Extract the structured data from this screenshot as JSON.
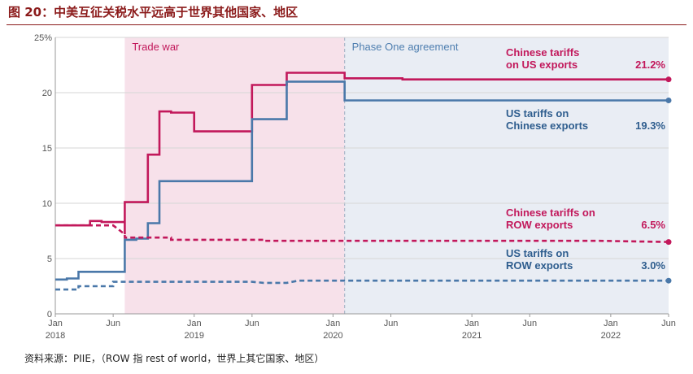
{
  "figure": {
    "title": "图 20：中美互征关税水平远高于世界其他国家、地区",
    "source": "资料来源：PIIE，（ROW 指 rest of world，世界上其它国家、地区）"
  },
  "chart_data": {
    "type": "line",
    "x_axis": {
      "range": [
        "2018-01",
        "2022-06"
      ],
      "month_ticks": [
        {
          "date": "2018-01",
          "label": "Jan"
        },
        {
          "date": "2018-06",
          "label": "Jun"
        },
        {
          "date": "2019-01",
          "label": "Jan"
        },
        {
          "date": "2019-06",
          "label": "Jun"
        },
        {
          "date": "2020-01",
          "label": "Jan"
        },
        {
          "date": "2020-06",
          "label": "Jun"
        },
        {
          "date": "2021-01",
          "label": "Jan"
        },
        {
          "date": "2021-06",
          "label": "Jun"
        },
        {
          "date": "2022-01",
          "label": "Jan"
        },
        {
          "date": "2022-06",
          "label": "Jun"
        }
      ],
      "year_ticks": [
        {
          "date": "2018-01",
          "label": "2018"
        },
        {
          "date": "2019-01",
          "label": "2019"
        },
        {
          "date": "2020-01",
          "label": "2020"
        },
        {
          "date": "2021-01",
          "label": "2021"
        },
        {
          "date": "2022-01",
          "label": "2022"
        }
      ]
    },
    "y_axis": {
      "range": [
        0,
        25
      ],
      "ticks": [
        {
          "value": 0,
          "label": "0"
        },
        {
          "value": 5,
          "label": "5"
        },
        {
          "value": 10,
          "label": "10"
        },
        {
          "value": 15,
          "label": "15"
        },
        {
          "value": 20,
          "label": "20"
        },
        {
          "value": 25,
          "label": "25%"
        }
      ]
    },
    "grid": "horizontal",
    "regions": [
      {
        "label": "Trade war",
        "start": "2018-07",
        "end": "2020-02",
        "color": "#f7e1ea",
        "text_color": "#c2185b"
      },
      {
        "label": "Phase One agreement",
        "start": "2020-02",
        "end": "2022-06",
        "color": "#e9edf4",
        "text_color": "#4f7fb0"
      }
    ],
    "series": [
      {
        "name": "Chinese tariffs on US exports",
        "color": "#c2185b",
        "style": "solid",
        "end_label": "21.2%",
        "points": [
          [
            "2018-01",
            8.0
          ],
          [
            "2018-04",
            8.0
          ],
          [
            "2018-04",
            8.4
          ],
          [
            "2018-05",
            8.4
          ],
          [
            "2018-05",
            8.3
          ],
          [
            "2018-07",
            8.3
          ],
          [
            "2018-07",
            7.2
          ],
          [
            "2018-07",
            10.1
          ],
          [
            "2018-09",
            10.1
          ],
          [
            "2018-09",
            14.4
          ],
          [
            "2018-10",
            14.4
          ],
          [
            "2018-10",
            18.3
          ],
          [
            "2018-11",
            18.3
          ],
          [
            "2018-11",
            18.2
          ],
          [
            "2019-01",
            18.2
          ],
          [
            "2019-01",
            16.5
          ],
          [
            "2019-06",
            16.5
          ],
          [
            "2019-06",
            20.7
          ],
          [
            "2019-09",
            20.7
          ],
          [
            "2019-09",
            21.8
          ],
          [
            "2020-02",
            21.8
          ],
          [
            "2020-02",
            21.3
          ],
          [
            "2020-07",
            21.3
          ],
          [
            "2020-07",
            21.2
          ],
          [
            "2022-06",
            21.2
          ]
        ]
      },
      {
        "name": "US tariffs on Chinese exports",
        "color": "#4a78a9",
        "style": "solid",
        "end_label": "19.3%",
        "points": [
          [
            "2018-01",
            3.1
          ],
          [
            "2018-02",
            3.1
          ],
          [
            "2018-02",
            3.2
          ],
          [
            "2018-03",
            3.2
          ],
          [
            "2018-03",
            3.8
          ],
          [
            "2018-07",
            3.8
          ],
          [
            "2018-07",
            6.7
          ],
          [
            "2018-08",
            6.7
          ],
          [
            "2018-08",
            6.8
          ],
          [
            "2018-09",
            6.8
          ],
          [
            "2018-09",
            8.2
          ],
          [
            "2018-10",
            8.2
          ],
          [
            "2018-10",
            12.0
          ],
          [
            "2019-06",
            12.0
          ],
          [
            "2019-06",
            17.6
          ],
          [
            "2019-09",
            17.6
          ],
          [
            "2019-09",
            21.0
          ],
          [
            "2020-02",
            21.0
          ],
          [
            "2020-02",
            19.3
          ],
          [
            "2022-06",
            19.3
          ]
        ]
      },
      {
        "name": "Chinese tariffs on ROW exports",
        "color": "#c2185b",
        "style": "dashed",
        "end_label": "6.5%",
        "points": [
          [
            "2018-01",
            8.0
          ],
          [
            "2018-06",
            8.0
          ],
          [
            "2018-07",
            7.2
          ],
          [
            "2018-07",
            6.9
          ],
          [
            "2018-11",
            6.9
          ],
          [
            "2018-11",
            6.7
          ],
          [
            "2019-07",
            6.7
          ],
          [
            "2019-07",
            6.6
          ],
          [
            "2021-12",
            6.6
          ],
          [
            "2022-06",
            6.5
          ]
        ]
      },
      {
        "name": "US tariffs on ROW exports",
        "color": "#4a78a9",
        "style": "dashed",
        "end_label": "3.0%",
        "points": [
          [
            "2018-01",
            2.2
          ],
          [
            "2018-03",
            2.2
          ],
          [
            "2018-03",
            2.5
          ],
          [
            "2018-06",
            2.5
          ],
          [
            "2018-06",
            2.9
          ],
          [
            "2019-06",
            2.9
          ],
          [
            "2019-07",
            2.8
          ],
          [
            "2019-09",
            2.8
          ],
          [
            "2019-10",
            3.0
          ],
          [
            "2022-06",
            3.0
          ]
        ]
      }
    ],
    "labels": [
      {
        "lines": [
          "Chinese tariffs",
          "on US exports"
        ],
        "value": "21.2%",
        "color": "#c2185b",
        "series": 0
      },
      {
        "lines": [
          "US tariffs on",
          "Chinese exports"
        ],
        "value": "19.3%",
        "color": "#2e5d8e",
        "series": 1
      },
      {
        "lines": [
          "Chinese tariffs on",
          "ROW exports"
        ],
        "value": "6.5%",
        "color": "#c2185b",
        "series": 2
      },
      {
        "lines": [
          "US tariffs on",
          "ROW exports"
        ],
        "value": "3.0%",
        "color": "#2e5d8e",
        "series": 3
      }
    ]
  }
}
